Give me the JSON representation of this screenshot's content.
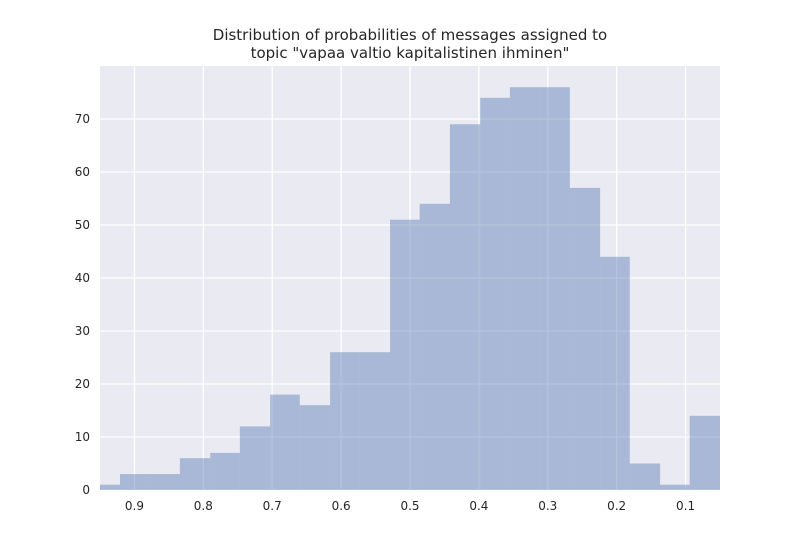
{
  "chart_data": {
    "type": "bar",
    "title_lines": [
      "Distribution of probabilities of messages assigned to",
      "topic \"vapaa valtio kapitalistinen ihminen\""
    ],
    "xlabel": "",
    "ylabel": "",
    "x_axis_reversed": true,
    "xlim": [
      0.95,
      0.05
    ],
    "ylim": [
      0,
      80
    ],
    "x_ticks": [
      0.9,
      0.8,
      0.7,
      0.6,
      0.5,
      0.4,
      0.3,
      0.2,
      0.1
    ],
    "x_tick_labels": [
      "0.9",
      "0.8",
      "0.7",
      "0.6",
      "0.5",
      "0.4",
      "0.3",
      "0.2",
      "0.1"
    ],
    "y_ticks": [
      0,
      10,
      20,
      30,
      40,
      50,
      60,
      70
    ],
    "y_tick_labels": [
      "0",
      "10",
      "20",
      "30",
      "40",
      "50",
      "60",
      "70"
    ],
    "grid": true,
    "bar_color": "#4c72b0",
    "background_color": "#eaeaf2",
    "bins": [
      {
        "x_start": 0.953,
        "x_end": 0.921,
        "count": 1
      },
      {
        "x_start": 0.921,
        "x_end": 0.878,
        "count": 3
      },
      {
        "x_start": 0.878,
        "x_end": 0.834,
        "count": 3
      },
      {
        "x_start": 0.834,
        "x_end": 0.79,
        "count": 6
      },
      {
        "x_start": 0.79,
        "x_end": 0.747,
        "count": 7
      },
      {
        "x_start": 0.747,
        "x_end": 0.703,
        "count": 12
      },
      {
        "x_start": 0.703,
        "x_end": 0.66,
        "count": 18
      },
      {
        "x_start": 0.66,
        "x_end": 0.616,
        "count": 16
      },
      {
        "x_start": 0.616,
        "x_end": 0.573,
        "count": 26
      },
      {
        "x_start": 0.573,
        "x_end": 0.529,
        "count": 26
      },
      {
        "x_start": 0.529,
        "x_end": 0.486,
        "count": 51
      },
      {
        "x_start": 0.486,
        "x_end": 0.442,
        "count": 54
      },
      {
        "x_start": 0.442,
        "x_end": 0.398,
        "count": 69
      },
      {
        "x_start": 0.398,
        "x_end": 0.355,
        "count": 74
      },
      {
        "x_start": 0.355,
        "x_end": 0.311,
        "count": 76
      },
      {
        "x_start": 0.311,
        "x_end": 0.268,
        "count": 76
      },
      {
        "x_start": 0.268,
        "x_end": 0.224,
        "count": 57
      },
      {
        "x_start": 0.224,
        "x_end": 0.181,
        "count": 44
      },
      {
        "x_start": 0.181,
        "x_end": 0.137,
        "count": 5
      },
      {
        "x_start": 0.137,
        "x_end": 0.094,
        "count": 1
      },
      {
        "x_start": 0.094,
        "x_end": 0.05,
        "count": 14
      }
    ]
  }
}
